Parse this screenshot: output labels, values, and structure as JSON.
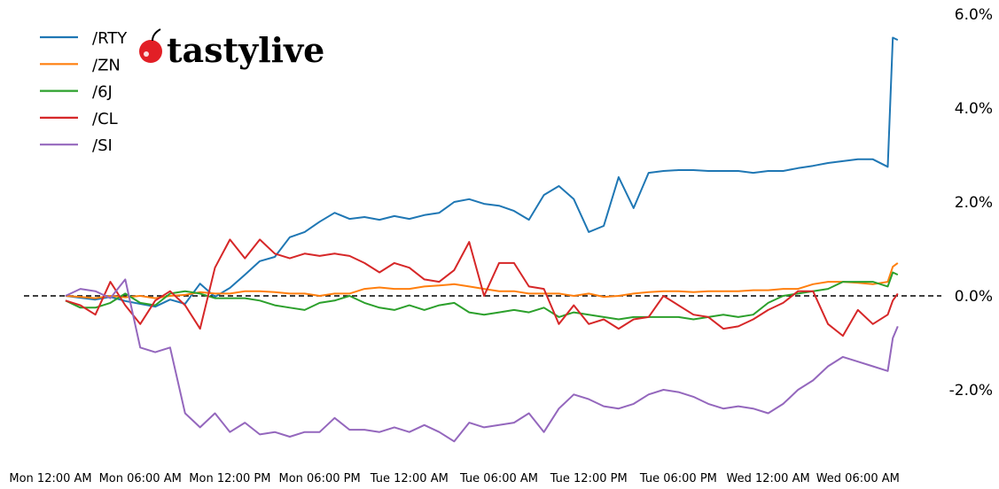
{
  "logo": {
    "text": "tastylive",
    "icon": "cherry-icon",
    "icon_color": "#e21f26"
  },
  "chart_data": {
    "type": "line",
    "title": "",
    "xlabel": "",
    "ylabel": "",
    "y_axis_side": "right",
    "ylim": [
      -3.2,
      6.2
    ],
    "yticks": [
      6.0,
      4.0,
      2.0,
      0.0,
      -2.0
    ],
    "ytick_labels": [
      "6.0%",
      "4.0%",
      "2.0%",
      "0.0%",
      "-2.0%"
    ],
    "xtick_labels": [
      "Mon 12:00 AM",
      "Mon 06:00 AM",
      "Mon 12:00 PM",
      "Mon 06:00 PM",
      "Tue 12:00 AM",
      "Tue 06:00 AM",
      "Tue 12:00 PM",
      "Tue 06:00 PM",
      "Wed 12:00 AM",
      "Wed 06:00 AM"
    ],
    "xticks": [
      "Mon 00:00",
      "Mon 06:00",
      "Mon 12:00",
      "Mon 18:00",
      "Tue 00:00",
      "Tue 06:00",
      "Tue 12:00",
      "Tue 18:00",
      "Wed 00:00",
      "Wed 06:00"
    ],
    "reference_line": {
      "y": 0.0,
      "style": "dashed",
      "color": "#000000"
    },
    "grid": false,
    "legend_position": "top-left",
    "x": [
      "Mon 01:00",
      "Mon 02:00",
      "Mon 03:00",
      "Mon 04:00",
      "Mon 05:00",
      "Mon 06:00",
      "Mon 07:00",
      "Mon 08:00",
      "Mon 09:00",
      "Mon 10:00",
      "Mon 11:00",
      "Mon 12:00",
      "Mon 13:00",
      "Mon 14:00",
      "Mon 15:00",
      "Mon 16:00",
      "Mon 17:00",
      "Mon 18:00",
      "Mon 19:00",
      "Mon 20:00",
      "Mon 21:00",
      "Mon 22:00",
      "Mon 23:00",
      "Tue 00:00",
      "Tue 01:00",
      "Tue 02:00",
      "Tue 03:00",
      "Tue 04:00",
      "Tue 05:00",
      "Tue 06:00",
      "Tue 07:00",
      "Tue 08:00",
      "Tue 09:00",
      "Tue 10:00",
      "Tue 11:00",
      "Tue 12:00",
      "Tue 13:00",
      "Tue 14:00",
      "Tue 15:00",
      "Tue 16:00",
      "Tue 17:00",
      "Tue 18:00",
      "Tue 19:00",
      "Tue 20:00",
      "Tue 21:00",
      "Tue 22:00",
      "Tue 23:00",
      "Wed 00:00",
      "Wed 01:00",
      "Wed 02:00",
      "Wed 03:00",
      "Wed 04:00",
      "Wed 05:00",
      "Wed 06:00",
      "Wed 07:00",
      "Wed 08:00",
      "Wed 08:20",
      "Wed 08:40"
    ],
    "series": [
      {
        "name": "/RTY",
        "color": "#1f77b4",
        "values": [
          0,
          -0.04,
          -0.08,
          -0.02,
          -0.11,
          -0.17,
          -0.23,
          -0.08,
          -0.17,
          0.26,
          -0.02,
          0.17,
          0.45,
          0.74,
          0.83,
          1.25,
          1.36,
          1.58,
          1.77,
          1.64,
          1.68,
          1.62,
          1.7,
          1.64,
          1.72,
          1.77,
          2.0,
          2.06,
          1.96,
          1.92,
          1.81,
          1.62,
          2.15,
          2.34,
          2.06,
          1.36,
          1.49,
          2.53,
          1.87,
          2.62,
          2.66,
          2.68,
          2.68,
          2.66,
          2.66,
          2.66,
          2.62,
          2.66,
          2.66,
          2.72,
          2.77,
          2.83,
          2.87,
          2.91,
          2.91,
          2.75,
          5.5,
          5.45
        ]
      },
      {
        "name": "/ZN",
        "color": "#ff7f0e",
        "values": [
          0,
          -0.02,
          -0.05,
          0.0,
          -0.03,
          0.0,
          -0.05,
          0.0,
          0.02,
          0.08,
          0.05,
          0.05,
          0.1,
          0.1,
          0.08,
          0.05,
          0.05,
          0.0,
          0.05,
          0.05,
          0.15,
          0.18,
          0.15,
          0.15,
          0.2,
          0.22,
          0.25,
          0.2,
          0.15,
          0.1,
          0.1,
          0.05,
          0.05,
          0.05,
          0.0,
          0.05,
          -0.02,
          0.0,
          0.05,
          0.08,
          0.1,
          0.1,
          0.08,
          0.1,
          0.1,
          0.1,
          0.12,
          0.12,
          0.15,
          0.15,
          0.25,
          0.3,
          0.3,
          0.28,
          0.25,
          0.3,
          0.62,
          0.7
        ]
      },
      {
        "name": "/6J",
        "color": "#2ca02c",
        "values": [
          -0.1,
          -0.25,
          -0.25,
          -0.15,
          0.05,
          -0.15,
          -0.2,
          0.05,
          0.1,
          0.05,
          -0.05,
          -0.05,
          -0.05,
          -0.1,
          -0.2,
          -0.25,
          -0.3,
          -0.15,
          -0.1,
          0.0,
          -0.15,
          -0.25,
          -0.3,
          -0.2,
          -0.3,
          -0.2,
          -0.15,
          -0.35,
          -0.4,
          -0.35,
          -0.3,
          -0.35,
          -0.25,
          -0.45,
          -0.35,
          -0.4,
          -0.45,
          -0.5,
          -0.45,
          -0.45,
          -0.45,
          -0.45,
          -0.5,
          -0.45,
          -0.4,
          -0.45,
          -0.4,
          -0.15,
          0.0,
          0.05,
          0.1,
          0.15,
          0.3,
          0.3,
          0.3,
          0.2,
          0.5,
          0.45
        ]
      },
      {
        "name": "/CL",
        "color": "#d62728",
        "values": [
          -0.1,
          -0.2,
          -0.4,
          0.3,
          -0.2,
          -0.6,
          -0.1,
          0.1,
          -0.2,
          -0.7,
          0.6,
          1.2,
          0.8,
          1.2,
          0.9,
          0.8,
          0.9,
          0.85,
          0.9,
          0.85,
          0.7,
          0.5,
          0.7,
          0.6,
          0.35,
          0.3,
          0.55,
          1.15,
          0.0,
          0.7,
          0.7,
          0.2,
          0.15,
          -0.6,
          -0.2,
          -0.6,
          -0.5,
          -0.7,
          -0.5,
          -0.45,
          0.0,
          -0.2,
          -0.4,
          -0.45,
          -0.7,
          -0.65,
          -0.5,
          -0.3,
          -0.15,
          0.1,
          0.1,
          -0.6,
          -0.85,
          -0.3,
          -0.6,
          -0.4,
          -0.1,
          0.05
        ]
      },
      {
        "name": "/SI",
        "color": "#9467bd",
        "values": [
          0.0,
          0.15,
          0.1,
          -0.05,
          0.35,
          -1.1,
          -1.2,
          -1.1,
          -2.5,
          -2.8,
          -2.5,
          -2.9,
          -2.7,
          -2.95,
          -2.9,
          -3.0,
          -2.9,
          -2.9,
          -2.6,
          -2.85,
          -2.85,
          -2.9,
          -2.8,
          -2.9,
          -2.75,
          -2.9,
          -3.1,
          -2.7,
          -2.8,
          -2.75,
          -2.7,
          -2.5,
          -2.9,
          -2.4,
          -2.1,
          -2.2,
          -2.35,
          -2.4,
          -2.3,
          -2.1,
          -2.0,
          -2.05,
          -2.15,
          -2.3,
          -2.4,
          -2.35,
          -2.4,
          -2.5,
          -2.3,
          -2.0,
          -1.8,
          -1.5,
          -1.3,
          -1.4,
          -1.5,
          -1.6,
          -0.9,
          -0.65
        ]
      }
    ]
  }
}
